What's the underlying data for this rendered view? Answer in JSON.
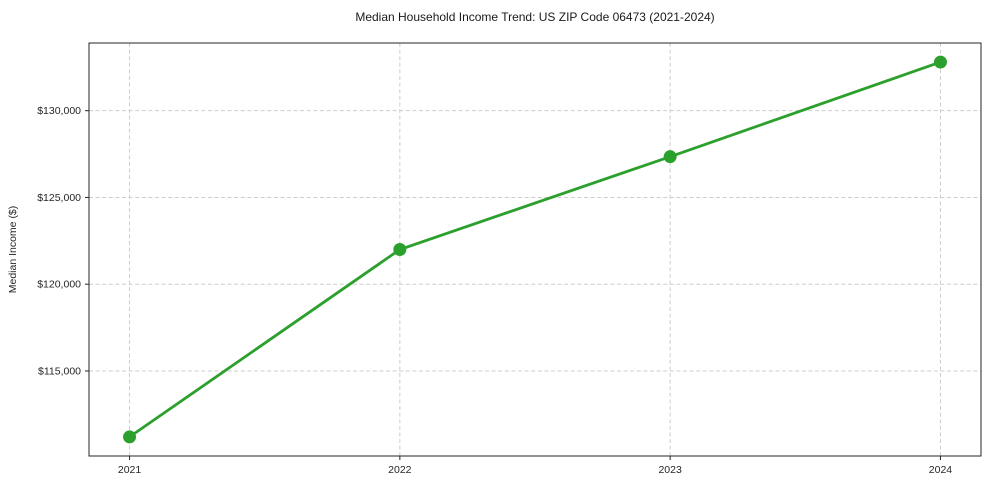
{
  "chart_data": {
    "type": "line",
    "title": "Median Household Income Trend: US ZIP Code 06473 (2021-2024)",
    "xlabel": "",
    "ylabel": "Median Income ($)",
    "x": [
      2021,
      2022,
      2023,
      2024
    ],
    "categories": [
      "2021",
      "2022",
      "2023",
      "2024"
    ],
    "series": [
      {
        "name": "Median Household Income",
        "values": [
          111200,
          122000,
          127350,
          132800
        ]
      }
    ],
    "yticks": [
      115000,
      120000,
      125000,
      130000
    ],
    "ytick_labels": [
      "$115,000",
      "$120,000",
      "$125,000",
      "$130,000"
    ],
    "xlim": [
      2020.85,
      2024.15
    ],
    "ylim": [
      110100,
      133900
    ],
    "grid": true,
    "grid_style": "dashed",
    "legend": "none",
    "line_color": "#2ca02c",
    "marker": "circle",
    "grid_color": "#cdcdcd",
    "spine_color": "#262626",
    "background_color": "#ffffff"
  }
}
